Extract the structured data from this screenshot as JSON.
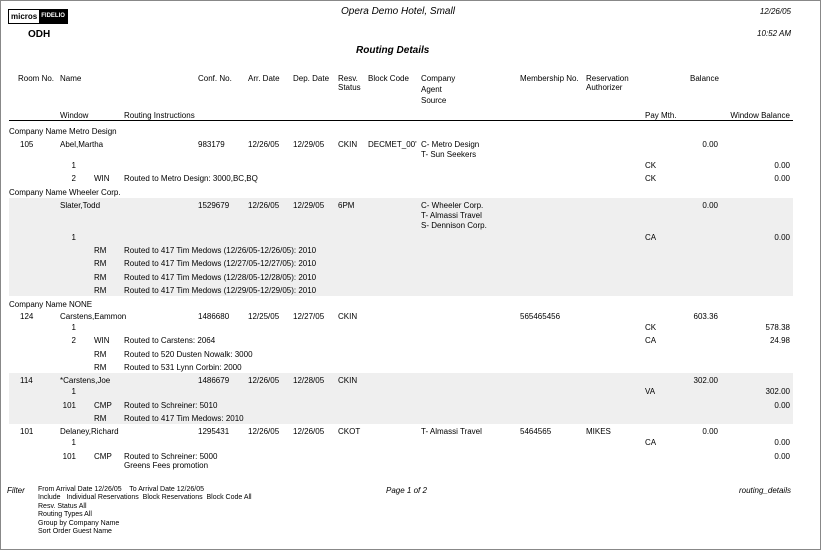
{
  "header": {
    "logo_left": "micros",
    "logo_right": "FIDELIO",
    "hotel": "Opera Demo Hotel, Small",
    "date": "12/26/05",
    "code": "ODH",
    "time": "10:52 AM",
    "title": "Routing Details"
  },
  "columns": {
    "room": "Room No.",
    "name": "Name",
    "conf": "Conf. No.",
    "arr": "Arr. Date",
    "dep": "Dep. Date",
    "status": [
      "Resv.",
      "Status"
    ],
    "block": "Block Code",
    "company": [
      "Company",
      "Agent",
      "Source"
    ],
    "membership": "Membership No.",
    "authorizer": [
      "Reservation",
      "Authorizer"
    ],
    "balance": "Balance",
    "window": "Window",
    "instructions": "Routing Instructions",
    "pay": "Pay Mth.",
    "window_balance": "Window Balance"
  },
  "groups": [
    {
      "label": "Company Name Metro Design",
      "reservations": [
        {
          "room": "105",
          "name": "Abel,Martha",
          "conf": "983179",
          "arr": "12/26/05",
          "dep": "12/29/05",
          "status": "CKIN",
          "block": "DECMET_00'",
          "companies": [
            "C- Metro Design",
            "T- Sun Seekers"
          ],
          "balance": "0.00",
          "windows": [
            {
              "window": "1",
              "pay": "CK",
              "balance": "0.00"
            },
            {
              "window": "2",
              "type": "WIN",
              "instructions": [
                "Routed to Metro Design: 3000,BC,BQ"
              ],
              "pay": "CK",
              "balance": "0.00"
            }
          ]
        }
      ]
    },
    {
      "label": "Company Name Wheeler Corp.",
      "reservations": [
        {
          "name": "Slater,Todd",
          "conf": "1529679",
          "arr": "12/26/05",
          "dep": "12/29/05",
          "status": "6PM",
          "companies": [
            "C- Wheeler Corp.",
            "T- Almassi Travel",
            "S- Dennison Corp."
          ],
          "balance": "0.00",
          "windows": [
            {
              "window": "1",
              "pay": "CA",
              "balance": "0.00"
            },
            {
              "type": "RM",
              "instructions": [
                "Routed to 417 Tim Medows (12/26/05-12/26/05): 2010"
              ]
            },
            {
              "type": "RM",
              "instructions": [
                "Routed to 417 Tim Medows (12/27/05-12/27/05): 2010"
              ]
            },
            {
              "type": "RM",
              "instructions": [
                "Routed to 417 Tim Medows (12/28/05-12/28/05): 2010"
              ]
            },
            {
              "type": "RM",
              "instructions": [
                "Routed to 417 Tim Medows (12/29/05-12/29/05): 2010"
              ]
            }
          ]
        }
      ]
    },
    {
      "label": "Company Name NONE",
      "reservations": [
        {
          "room": "124",
          "name": "Carstens,Eammon",
          "conf": "1486680",
          "arr": "12/25/05",
          "dep": "12/27/05",
          "status": "CKIN",
          "membership": "565465456",
          "balance": "603.36",
          "windows": [
            {
              "window": "1",
              "pay": "CK",
              "balance": "578.38"
            },
            {
              "window": "2",
              "type": "WIN",
              "instructions": [
                "Routed to Carstens: 2064"
              ],
              "pay": "CA",
              "balance": "24.98"
            },
            {
              "type": "RM",
              "instructions": [
                "Routed to 520 Dusten Nowalk: 3000"
              ]
            },
            {
              "type": "RM",
              "instructions": [
                "Routed to 531 Lynn Corbin: 2000"
              ]
            }
          ]
        },
        {
          "room": "114",
          "name": "*Carstens,Joe",
          "conf": "1486679",
          "arr": "12/26/05",
          "dep": "12/28/05",
          "status": "CKIN",
          "balance": "302.00",
          "windows": [
            {
              "window": "1",
              "pay": "VA",
              "balance": "302.00"
            },
            {
              "window": "101",
              "type": "CMP",
              "instructions": [
                "Routed to Schreiner: 5010"
              ],
              "balance": "0.00"
            },
            {
              "type": "RM",
              "instructions": [
                "Routed to 417 Tim Medows: 2010"
              ]
            }
          ]
        },
        {
          "room": "101",
          "name": "Delaney,Richard",
          "conf": "1295431",
          "arr": "12/26/05",
          "dep": "12/26/05",
          "status": "CKOT",
          "companies": [
            "T- Almassi Travel"
          ],
          "membership": "5464565",
          "authorizer": "MIKES",
          "balance": "0.00",
          "windows": [
            {
              "window": "1",
              "pay": "CA",
              "balance": "0.00"
            },
            {
              "window": "101",
              "type": "CMP",
              "instructions": [
                "Routed to Schreiner: 5000",
                "Greens Fees promotion"
              ],
              "balance": "0.00"
            }
          ]
        }
      ]
    }
  ],
  "footer": {
    "filter_label": "Filter",
    "filters": [
      "From Arrival Date 12/26/05    To Arrival Date 12/26/05",
      "Include   Individual Reservations  Block Reservations  Block Code All",
      "Resv. Status All",
      "Routing Types All",
      "Group by Company Name",
      "Sort Order Guest Name"
    ],
    "page": "Page 1 of 2",
    "report": "routing_details"
  }
}
